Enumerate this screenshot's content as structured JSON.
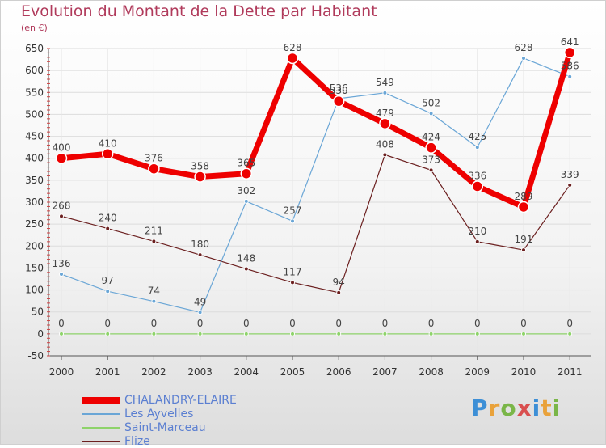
{
  "title": "Evolution du Montant de la Dette par Habitant",
  "unit": "(en €)",
  "logo": "Proxiti",
  "chart_data": {
    "type": "line",
    "x": [
      "2000",
      "2001",
      "2002",
      "2003",
      "2004",
      "2005",
      "2006",
      "2007",
      "2008",
      "2009",
      "2010",
      "2011"
    ],
    "ylim": [
      -50,
      650
    ],
    "yticks": [
      -50,
      0,
      50,
      100,
      150,
      200,
      250,
      300,
      350,
      400,
      450,
      500,
      550,
      600,
      650
    ],
    "grid": true,
    "legend": "bottom-left",
    "series": [
      {
        "name": "Flize",
        "color": "#6b1f1f",
        "width": 1.2,
        "marker": 5,
        "labels": [
          "268",
          "240",
          "211",
          "180",
          "148",
          "117",
          "94",
          "408",
          "373",
          "210",
          "191",
          "339"
        ],
        "values": [
          268,
          240,
          211,
          180,
          148,
          117,
          94,
          408,
          373,
          210,
          191,
          339
        ]
      },
      {
        "name": "Saint-Marceau",
        "color": "#8ed36a",
        "width": 1.2,
        "marker": 5,
        "labels": [
          "0",
          "0",
          "0",
          "0",
          "0",
          "0",
          "0",
          "0",
          "0",
          "0",
          "0",
          "0"
        ],
        "values": [
          0,
          0,
          0,
          0,
          0,
          0,
          0,
          0,
          0,
          0,
          0,
          0
        ]
      },
      {
        "name": "Les Ayvelles",
        "color": "#6aa6d6",
        "width": 1.2,
        "marker": 5,
        "labels": [
          "136",
          "97",
          "74",
          "49",
          "302",
          "257",
          "536",
          "549",
          "502",
          "425",
          "628",
          "586"
        ],
        "values": [
          136,
          97,
          74,
          49,
          302,
          257,
          536,
          549,
          502,
          425,
          628,
          586
        ]
      },
      {
        "name": "CHALANDRY-ELAIRE",
        "color": "#ee0000",
        "width": 7,
        "marker": 13,
        "labels": [
          "400",
          "410",
          "376",
          "358",
          "365",
          "628",
          "530",
          "479",
          "424",
          "336",
          "289",
          "641"
        ],
        "values": [
          400,
          410,
          376,
          358,
          365,
          628,
          530,
          479,
          424,
          336,
          289,
          641
        ]
      }
    ]
  }
}
